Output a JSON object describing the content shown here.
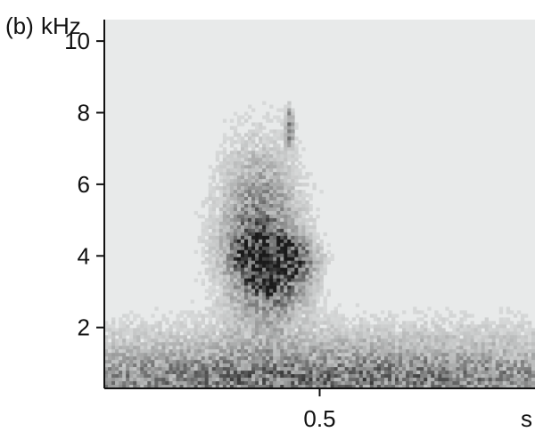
{
  "chart_data": {
    "type": "heatmap",
    "panel_label": "(b)",
    "ylabel": "kHz",
    "xlabel": "s",
    "y_ticks": [
      {
        "value": 10,
        "label": "10"
      },
      {
        "value": 8,
        "label": "8"
      },
      {
        "value": 6,
        "label": "6"
      },
      {
        "value": 4,
        "label": "4"
      },
      {
        "value": 2,
        "label": "2"
      }
    ],
    "x_ticks": [
      {
        "value": 0.5,
        "label": "0.5"
      }
    ],
    "xlim": [
      0,
      1.0
    ],
    "ylim": [
      0.3,
      10.6
    ],
    "grid": false,
    "colormap": [
      "#e8eaea",
      "#1a1a1a"
    ],
    "blobs": [
      {
        "x": 0.37,
        "y": 4.0,
        "sx": 0.045,
        "sy": 0.45,
        "amp": 0.95
      },
      {
        "x": 0.36,
        "y": 4.6,
        "sx": 0.06,
        "sy": 1.5,
        "amp": 0.55
      },
      {
        "x": 0.4,
        "y": 3.2,
        "sx": 0.05,
        "sy": 0.6,
        "amp": 0.45
      },
      {
        "x": 0.43,
        "y": 3.9,
        "sx": 0.04,
        "sy": 0.35,
        "amp": 0.55
      },
      {
        "x": 0.43,
        "y": 7.6,
        "sx": 0.006,
        "sy": 0.35,
        "amp": 0.6
      },
      {
        "x": 0.5,
        "y": 0.5,
        "sx": 0.6,
        "sy": 0.5,
        "amp": 0.55
      },
      {
        "x": 0.5,
        "y": 1.4,
        "sx": 0.6,
        "sy": 0.6,
        "amp": 0.18
      }
    ]
  }
}
